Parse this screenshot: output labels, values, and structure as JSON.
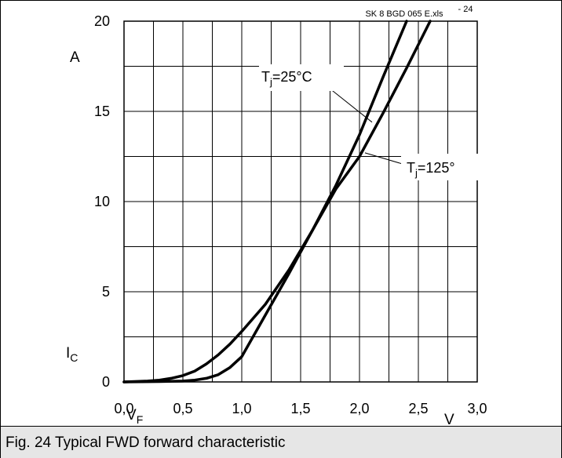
{
  "caption": "Fig. 24 Typical FWD forward characteristic",
  "chart_data": {
    "type": "line",
    "source_tag": "SK 8 BGD 065 E.xls",
    "fig_tag": "- 24",
    "x_ticks": [
      "0,0",
      "0,5",
      "1,0",
      "1,5",
      "2,0",
      "2,5",
      "3,0"
    ],
    "y_ticks": [
      "0",
      "5",
      "10",
      "15",
      "20"
    ],
    "xlim": [
      0,
      3
    ],
    "ylim": [
      0,
      20
    ],
    "x_gridstep": 0.25,
    "y_gridstep": 2.5,
    "grid": true,
    "ylabel_main": "I",
    "ylabel_sub": "C",
    "xlabel_main": "V",
    "xlabel_sub": "F",
    "x_unit": "V",
    "y_unit": "A",
    "line_color": "#000000",
    "series": [
      {
        "label_main": "T",
        "label_sub": "j",
        "label_suffix": "=25°C",
        "x": [
          0,
          0.2,
          0.3,
          0.4,
          0.5,
          0.6,
          0.7,
          0.8,
          0.9,
          1.0,
          1.2,
          1.4,
          1.6,
          1.8,
          2.0,
          2.2,
          2.4
        ],
        "y": [
          0,
          0.05,
          0.1,
          0.2,
          0.35,
          0.6,
          1.0,
          1.5,
          2.1,
          2.8,
          4.3,
          6.2,
          8.4,
          10.9,
          13.7,
          16.9,
          20.0
        ]
      },
      {
        "label_main": "T",
        "label_sub": "j",
        "label_suffix": "=125°",
        "x": [
          0,
          0.3,
          0.5,
          0.6,
          0.7,
          0.8,
          0.9,
          1.0,
          1.2,
          1.4,
          1.6,
          1.8,
          2.0,
          2.2,
          2.4,
          2.6
        ],
        "y": [
          0,
          0.02,
          0.05,
          0.1,
          0.2,
          0.4,
          0.8,
          1.4,
          3.7,
          6.0,
          8.4,
          10.7,
          12.5,
          14.9,
          17.4,
          20.0
        ]
      }
    ]
  }
}
